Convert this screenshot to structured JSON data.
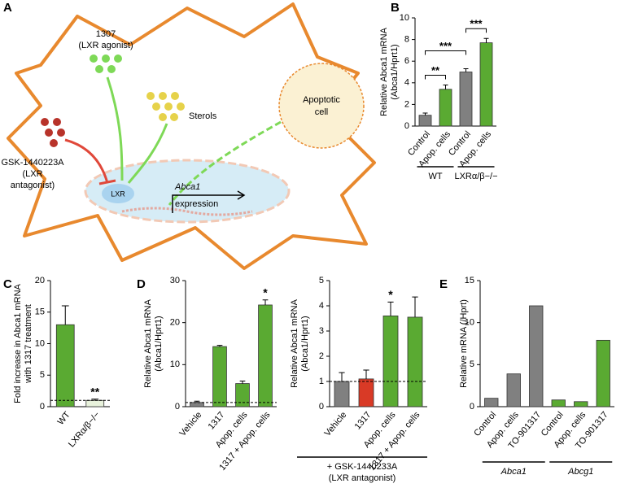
{
  "diagram": {
    "panel": "A",
    "agonist": [
      "1307",
      "(LXR agonist)"
    ],
    "sterols": "Sterols",
    "apoptotic": [
      "Apoptotic",
      "cell"
    ],
    "antagonist": [
      "GSK-1440223A",
      "(LXR",
      "antagonist)"
    ],
    "receptor": "LXR",
    "gene": "Abca1",
    "expression": "expression"
  },
  "chart_data": [
    {
      "type": "bar",
      "panel": "B",
      "ylabel": [
        "Relative Abca1 mRNA",
        "(Abca1/Hprt1)"
      ],
      "categories": [
        "Control",
        "Apop. cells",
        "Control",
        "Apop. cells"
      ],
      "values": [
        1.0,
        3.4,
        5.0,
        7.7
      ],
      "errors": [
        0.2,
        0.4,
        0.3,
        0.4
      ],
      "colors": [
        "#808080",
        "#5aaa32",
        "#808080",
        "#5aaa32"
      ],
      "ylim": [
        0,
        10
      ],
      "yticks": [
        0,
        2,
        4,
        6,
        8,
        10
      ],
      "brackets": [
        {
          "label": "**",
          "between": [
            0,
            1
          ]
        },
        {
          "label": "***",
          "between": [
            0,
            2
          ]
        },
        {
          "label": "***",
          "between": [
            2,
            3
          ]
        }
      ],
      "groups": [
        {
          "label": "WT",
          "span": [
            0,
            1
          ]
        },
        {
          "label": "LXRα/β−/−",
          "span": [
            2,
            3
          ]
        }
      ]
    },
    {
      "type": "bar",
      "panel": "C",
      "ylabel": [
        "Fold increase in Abca1 mRNA",
        "with 1317 treatment"
      ],
      "categories": [
        "WT",
        "LXRα/β−/−"
      ],
      "values": [
        13,
        1.0
      ],
      "errors": [
        3,
        0.2
      ],
      "colors": [
        "#5aaa32",
        "#e8f2dc"
      ],
      "value_annotations": [
        null,
        "**"
      ],
      "refline": 1,
      "ylim": [
        0,
        20
      ],
      "yticks": [
        0,
        5,
        10,
        15,
        20
      ]
    },
    {
      "type": "bar",
      "panel": "D",
      "ylabel": [
        "Relative Abca1 mRNA",
        "(Abca1/Hprt1)"
      ],
      "categories": [
        "Vehicle",
        "1317",
        "Apop. cells",
        "1317 + Apop. cells"
      ],
      "values": [
        1.0,
        14.3,
        5.5,
        24.2
      ],
      "errors": [
        0.3,
        0.3,
        0.6,
        1.2
      ],
      "colors": [
        "#808080",
        "#5aaa32",
        "#5aaa32",
        "#5aaa32"
      ],
      "value_annotations": [
        null,
        null,
        null,
        "*"
      ],
      "refline": 1,
      "ylim": [
        0,
        30
      ],
      "yticks": [
        0,
        10,
        20,
        30
      ]
    },
    {
      "type": "bar",
      "ylabel": [
        "Relative Abca1 mRNA",
        "(Abca1/Hprt1)"
      ],
      "categories": [
        "Vehicle",
        "1317",
        "Apop. cells",
        "1317 + Apop. cells"
      ],
      "values": [
        1.0,
        1.1,
        3.6,
        3.55
      ],
      "errors": [
        0.35,
        0.35,
        0.55,
        0.8
      ],
      "colors": [
        "#808080",
        "#d93a26",
        "#5aaa32",
        "#5aaa32"
      ],
      "value_annotations": [
        null,
        null,
        "*",
        null
      ],
      "refline": 1,
      "ylim": [
        0,
        5
      ],
      "yticks": [
        0,
        1,
        2,
        3,
        4,
        5
      ],
      "footnote": [
        "+ GSK-1440233A",
        "(LXR antagonist)"
      ]
    },
    {
      "type": "bar",
      "panel": "E",
      "ylabel": [
        "Relative mRNA (/Hprt)"
      ],
      "categories": [
        "Control",
        "Apop. cells",
        "TO-901317",
        "Control",
        "Apop. cells",
        "TO-901317"
      ],
      "values": [
        1.0,
        3.9,
        12,
        0.8,
        0.6,
        7.9
      ],
      "colors": [
        "#808080",
        "#808080",
        "#808080",
        "#5aaa32",
        "#5aaa32",
        "#5aaa32"
      ],
      "ylim": [
        0,
        15
      ],
      "yticks": [
        0,
        5,
        10,
        15
      ],
      "groups": [
        {
          "label": "Abca1",
          "span": [
            0,
            2
          ]
        },
        {
          "label": "Abcg1",
          "span": [
            3,
            5
          ]
        }
      ]
    }
  ]
}
